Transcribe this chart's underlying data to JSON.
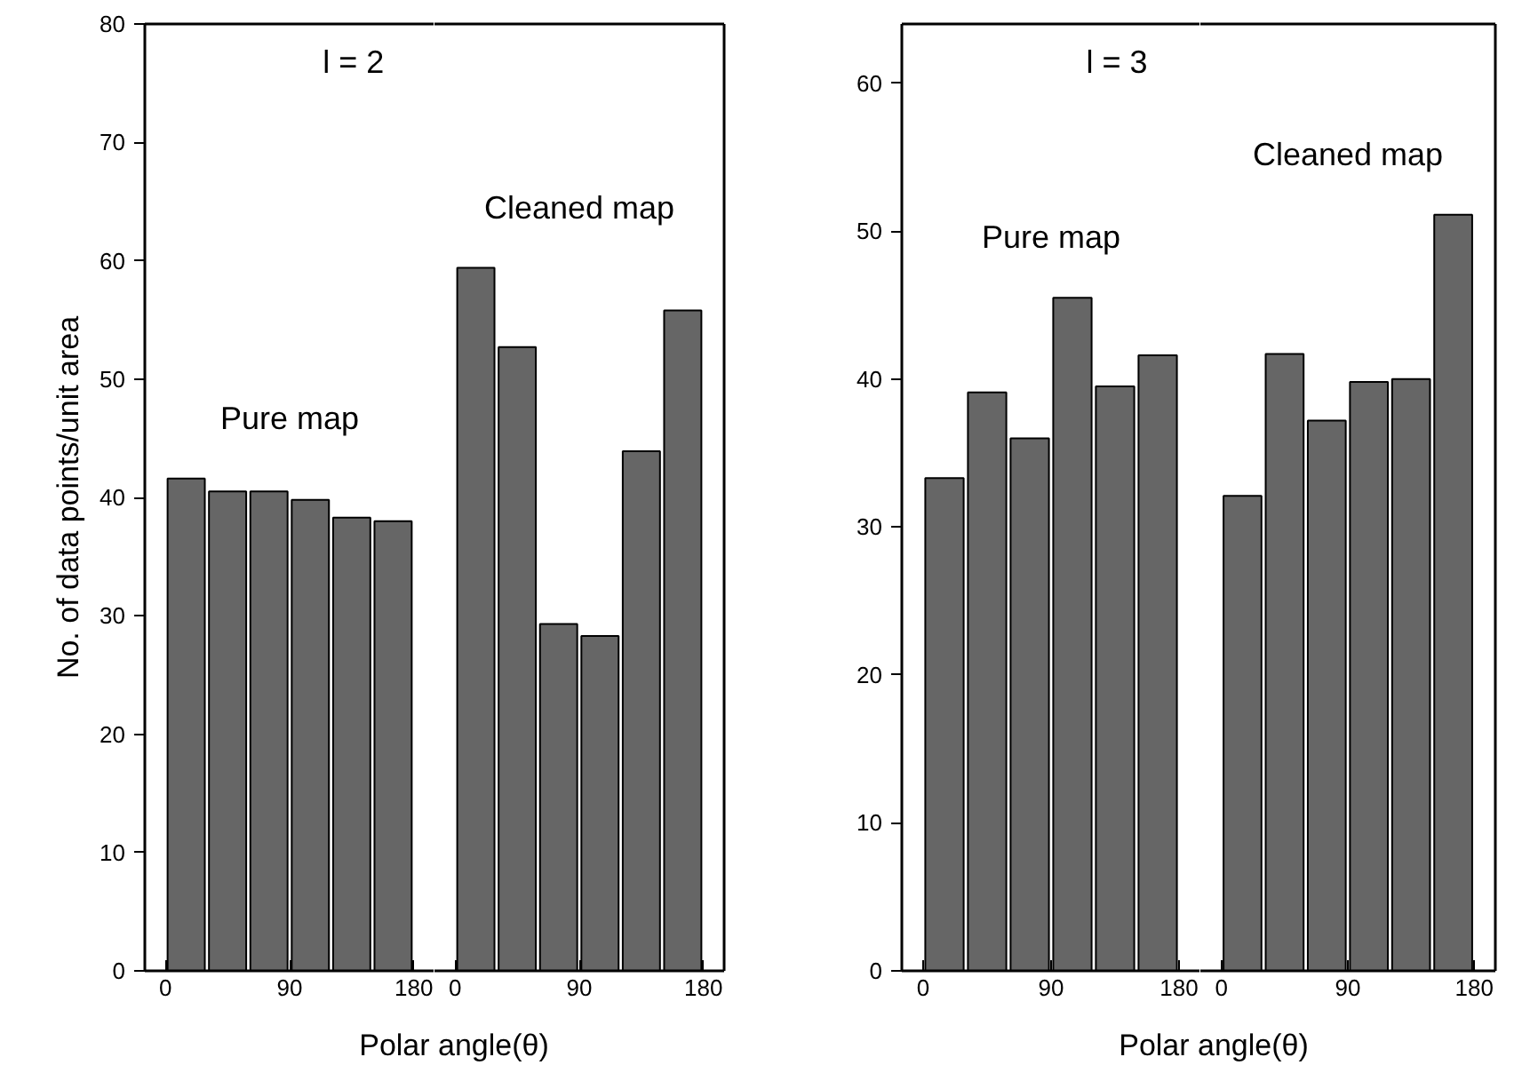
{
  "chart_data": [
    {
      "type": "bar",
      "title": "l = 2",
      "xlabel": "Polar angle(θ)",
      "ylabel": "No. of data points/unit area",
      "series": [
        {
          "name": "Pure map",
          "color": "#666666",
          "values": [
            41.6,
            40.5,
            40.5,
            39.8,
            38.3,
            38.0
          ]
        }
      ],
      "x": [
        15,
        45,
        75,
        105,
        135,
        165
      ],
      "xlim": [
        -15,
        195
      ],
      "xticks": [
        0,
        90,
        180
      ],
      "ylim": [
        0,
        80
      ],
      "yticks": [
        0,
        10,
        20,
        30,
        40,
        50,
        60,
        70,
        80
      ],
      "grid": false
    },
    {
      "type": "bar",
      "series": [
        {
          "name": "Cleaned map",
          "color": "#666666",
          "values": [
            59.4,
            52.7,
            29.3,
            28.3,
            43.9,
            55.8
          ]
        }
      ],
      "x": [
        15,
        45,
        75,
        105,
        135,
        165
      ],
      "xlim": [
        -15,
        195
      ],
      "xticks": [
        0,
        90,
        180
      ],
      "ylim": [
        0,
        80
      ],
      "grid": false,
      "tick_labels": "x"
    },
    {
      "type": "bar",
      "title": "l = 3",
      "xlabel": "Polar angle(θ)",
      "series": [
        {
          "name": "Pure map",
          "color": "#666666",
          "values": [
            33.3,
            39.1,
            36.0,
            45.5,
            39.5,
            41.6
          ]
        }
      ],
      "x": [
        15,
        45,
        75,
        105,
        135,
        165
      ],
      "xlim": [
        -15,
        195
      ],
      "xticks": [
        0,
        90,
        180
      ],
      "ylim": [
        0,
        64
      ],
      "yticks": [
        0,
        10,
        20,
        30,
        40,
        50,
        60
      ],
      "grid": false
    },
    {
      "type": "bar",
      "series": [
        {
          "name": "Cleaned map",
          "color": "#666666",
          "values": [
            32.1,
            41.7,
            37.2,
            39.8,
            40.0,
            51.1
          ]
        }
      ],
      "x": [
        15,
        45,
        75,
        105,
        135,
        165
      ],
      "xlim": [
        -15,
        195
      ],
      "xticks": [
        0,
        90,
        180
      ],
      "ylim": [
        0,
        64
      ],
      "grid": false,
      "tick_labels": "x"
    }
  ]
}
